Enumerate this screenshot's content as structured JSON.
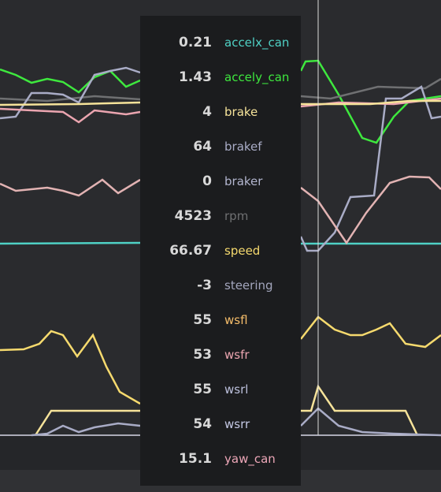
{
  "tooltip": {
    "rows": [
      {
        "value": 0.21,
        "name": "accelx_can",
        "color": "#4fd1c5"
      },
      {
        "value": 1.43,
        "name": "accely_can",
        "color": "#3ee83e"
      },
      {
        "value": 4,
        "name": "brake",
        "color": "#f6e39a"
      },
      {
        "value": 64,
        "name": "brakef",
        "color": "#a9acc6"
      },
      {
        "value": 0,
        "name": "braker",
        "color": "#b3b6cf"
      },
      {
        "value": 4523,
        "name": "rpm",
        "color": "#6f7072"
      },
      {
        "value": 66.67,
        "name": "speed",
        "color": "#f6da6e"
      },
      {
        "value": -3,
        "name": "steering",
        "color": "#a3a6bd"
      },
      {
        "value": 55,
        "name": "wsfl",
        "color": "#f5bd6a"
      },
      {
        "value": 53,
        "name": "wsfr",
        "color": "#eba5b0"
      },
      {
        "value": 55,
        "name": "wsrl",
        "color": "#bcc0dc"
      },
      {
        "value": 54,
        "name": "wsrr",
        "color": "#c4c8e4"
      },
      {
        "value": 15.1,
        "name": "yaw_can",
        "color": "#eda7b8"
      }
    ]
  }
}
